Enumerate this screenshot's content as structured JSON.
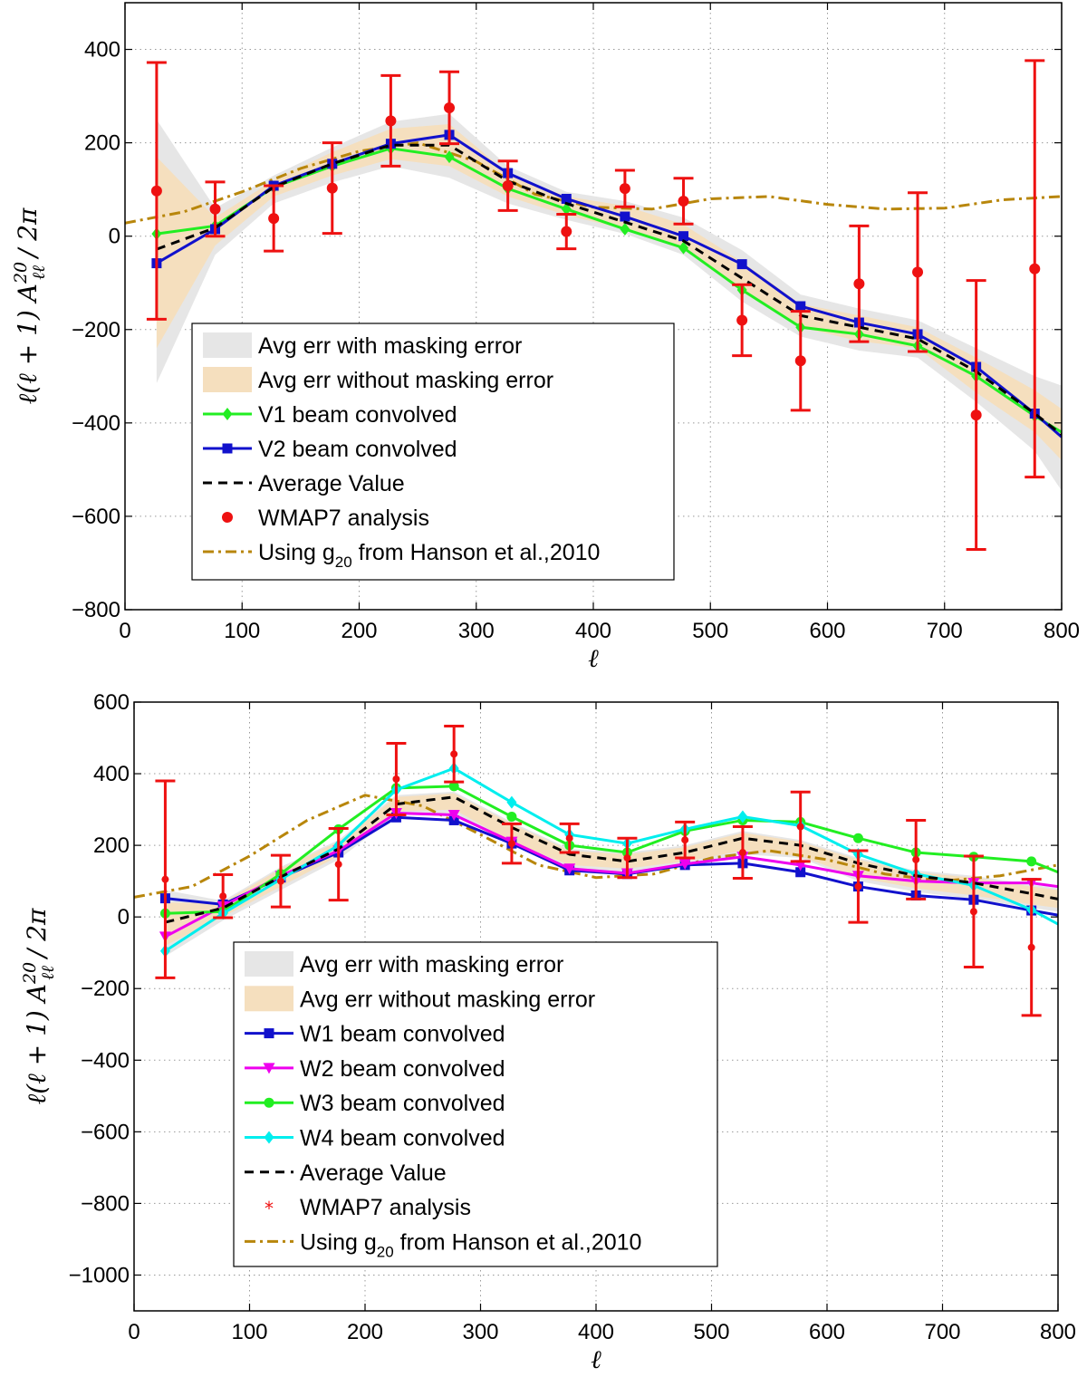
{
  "chart_data": [
    {
      "type": "line",
      "xlabel": "ℓ",
      "ylabel": "ℓ(ℓ + 1) A^{20}_{ℓℓ} / 2π",
      "xlim": [
        0,
        800
      ],
      "ylim": [
        -800,
        500
      ],
      "xticks": [
        "0",
        "100",
        "200",
        "300",
        "400",
        "500",
        "600",
        "700",
        "800"
      ],
      "yticks": [
        "−800",
        "−600",
        "−400",
        "−200",
        "0",
        "200",
        "400"
      ],
      "grid": true,
      "legend_position": "lower-left",
      "x": [
        27,
        77,
        127,
        177,
        227,
        277,
        327,
        377,
        427,
        477,
        527,
        577,
        627,
        677,
        727,
        777,
        800
      ],
      "bands": [
        {
          "name": "Avg err with masking error",
          "color": "#e6e6e6",
          "upper": [
            250,
            60,
            130,
            190,
            245,
            262,
            150,
            95,
            75,
            40,
            -30,
            -125,
            -155,
            -180,
            -240,
            -300,
            -320
          ],
          "lower": [
            -315,
            -40,
            70,
            115,
            150,
            125,
            70,
            35,
            5,
            -40,
            -140,
            -215,
            -245,
            -260,
            -355,
            -460,
            -545
          ]
        },
        {
          "name": "Avg err without masking error",
          "color": "#f5dfbe",
          "upper": [
            170,
            40,
            120,
            180,
            230,
            240,
            135,
            85,
            65,
            25,
            -55,
            -145,
            -170,
            -195,
            -260,
            -330,
            -370
          ],
          "lower": [
            -240,
            -20,
            85,
            130,
            165,
            150,
            85,
            45,
            15,
            -25,
            -120,
            -195,
            -225,
            -240,
            -335,
            -420,
            -480
          ]
        }
      ],
      "series": [
        {
          "name": "V1 beam convolved",
          "color": "#22ee22",
          "marker": "diamond",
          "values": [
            5,
            22,
            105,
            150,
            188,
            170,
            102,
            58,
            15,
            -25,
            -115,
            -195,
            -210,
            -235,
            -300,
            -385,
            -420
          ]
        },
        {
          "name": "V2 beam convolved",
          "color": "#1111cc",
          "marker": "square",
          "values": [
            -58,
            15,
            108,
            155,
            198,
            217,
            135,
            80,
            42,
            0,
            -60,
            -150,
            -185,
            -210,
            -280,
            -380,
            -430
          ]
        },
        {
          "name": "Average Value",
          "color": "#000000",
          "marker": "none",
          "dash": "dashed",
          "values": [
            -28,
            18,
            105,
            155,
            195,
            195,
            118,
            70,
            30,
            -10,
            -90,
            -170,
            -195,
            -220,
            -290,
            -380,
            -425
          ]
        }
      ],
      "wmap7": {
        "name": "WMAP7 analysis",
        "color": "#ee1111",
        "marker": "dot",
        "x": [
          27,
          77,
          127,
          177,
          227,
          277,
          327,
          377,
          427,
          477,
          527,
          577,
          627,
          677,
          727,
          777
        ],
        "values": [
          97,
          58,
          38,
          103,
          247,
          275,
          108,
          10,
          102,
          75,
          -180,
          -267,
          -102,
          -77,
          -383,
          -70
        ],
        "err": [
          275,
          58,
          70,
          97,
          97,
          77,
          53,
          37,
          39,
          49,
          76,
          106,
          124,
          170,
          288,
          446
        ]
      },
      "hanson": {
        "name": "Using g20 from Hanson et al.,2010",
        "color": "#b8860b",
        "dash": "dashdot",
        "x": [
          0,
          50,
          100,
          150,
          200,
          250,
          300,
          350,
          400,
          450,
          500,
          550,
          600,
          650,
          700,
          750,
          800
        ],
        "values": [
          28,
          52,
          95,
          145,
          182,
          200,
          160,
          90,
          62,
          58,
          80,
          85,
          68,
          58,
          60,
          78,
          85
        ]
      }
    },
    {
      "type": "line",
      "xlabel": "ℓ",
      "ylabel": "ℓ(ℓ + 1) A^{20}_{ℓℓ} / 2π",
      "xlim": [
        0,
        800
      ],
      "ylim": [
        -1100,
        600
      ],
      "xticks": [
        "0",
        "100",
        "200",
        "300",
        "400",
        "500",
        "600",
        "700",
        "800"
      ],
      "yticks": [
        "−1000",
        "−800",
        "−600",
        "−400",
        "−200",
        "0",
        "200",
        "400",
        "600"
      ],
      "grid": true,
      "legend_position": "lower-left",
      "x": [
        27,
        77,
        127,
        177,
        227,
        277,
        327,
        377,
        427,
        477,
        527,
        577,
        627,
        677,
        727,
        777,
        800
      ],
      "bands": [
        {
          "name": "Avg err with masking error",
          "color": "#e6e6e6",
          "upper": [
            75,
            45,
            140,
            215,
            340,
            350,
            265,
            190,
            180,
            200,
            240,
            215,
            165,
            130,
            115,
            90,
            80
          ],
          "lower": [
            -110,
            -10,
            75,
            160,
            285,
            290,
            200,
            135,
            125,
            145,
            175,
            165,
            100,
            70,
            50,
            25,
            15
          ]
        },
        {
          "name": "Avg err without masking error",
          "color": "#f5dfbe",
          "upper": [
            40,
            40,
            135,
            210,
            335,
            345,
            260,
            185,
            175,
            195,
            235,
            210,
            160,
            125,
            110,
            85,
            75
          ],
          "lower": [
            -80,
            0,
            85,
            170,
            295,
            300,
            210,
            145,
            135,
            155,
            185,
            170,
            110,
            80,
            60,
            35,
            25
          ]
        }
      ],
      "series": [
        {
          "name": "W1 beam convolved",
          "color": "#1111cc",
          "marker": "square",
          "values": [
            52,
            35,
            110,
            180,
            278,
            270,
            205,
            130,
            120,
            145,
            150,
            125,
            85,
            60,
            48,
            18,
            5
          ]
        },
        {
          "name": "W2 beam convolved",
          "color": "#ee00ee",
          "marker": "triangle-down",
          "values": [
            -55,
            30,
            115,
            185,
            290,
            285,
            210,
            135,
            122,
            148,
            168,
            145,
            115,
            100,
            95,
            95,
            85
          ]
        },
        {
          "name": "W3 beam convolved",
          "color": "#22ee22",
          "marker": "circle",
          "values": [
            10,
            15,
            120,
            245,
            360,
            365,
            280,
            200,
            180,
            240,
            270,
            265,
            220,
            180,
            168,
            155,
            125
          ]
        },
        {
          "name": "W4 beam convolved",
          "color": "#00eeee",
          "marker": "diamond",
          "values": [
            -95,
            10,
            105,
            200,
            355,
            415,
            320,
            230,
            205,
            245,
            280,
            255,
            175,
            120,
            88,
            20,
            -20
          ]
        },
        {
          "name": "Average Value",
          "color": "#000000",
          "marker": "none",
          "dash": "dashed",
          "values": [
            -15,
            25,
            112,
            190,
            315,
            335,
            250,
            175,
            155,
            180,
            220,
            200,
            150,
            115,
            95,
            65,
            50
          ]
        }
      ],
      "wmap7": {
        "name": "WMAP7 analysis",
        "color": "#ee1111",
        "marker": "star",
        "x": [
          27,
          77,
          127,
          177,
          227,
          277,
          327,
          377,
          427,
          477,
          527,
          577,
          627,
          677,
          727,
          777
        ],
        "values": [
          105,
          58,
          100,
          147,
          385,
          455,
          205,
          220,
          165,
          215,
          180,
          252,
          85,
          160,
          15,
          -85
        ],
        "err": [
          275,
          60,
          72,
          100,
          100,
          78,
          55,
          40,
          55,
          50,
          72,
          97,
          100,
          110,
          155,
          190
        ]
      },
      "hanson": {
        "name": "Using g20 from Hanson et al.,2010",
        "color": "#b8860b",
        "dash": "dashdot",
        "x": [
          0,
          50,
          100,
          150,
          200,
          250,
          300,
          350,
          400,
          450,
          500,
          550,
          600,
          650,
          700,
          750,
          800
        ],
        "values": [
          55,
          85,
          170,
          270,
          340,
          310,
          230,
          145,
          110,
          120,
          165,
          185,
          160,
          120,
          100,
          115,
          145
        ]
      }
    }
  ],
  "legends": [
    {
      "items": [
        {
          "label": "Avg err with masking error",
          "kind": "band",
          "color": "#e6e6e6"
        },
        {
          "label": "Avg err without masking error",
          "kind": "band",
          "color": "#f5dfbe"
        },
        {
          "label": "V1 beam convolved",
          "kind": "line",
          "color": "#22ee22",
          "marker": "diamond"
        },
        {
          "label": "V2 beam convolved",
          "kind": "line",
          "color": "#1111cc",
          "marker": "square"
        },
        {
          "label": "Average Value",
          "kind": "dashed",
          "color": "#000000"
        },
        {
          "label": "WMAP7 analysis",
          "kind": "dot",
          "color": "#ee1111"
        },
        {
          "label": "Using g",
          "sub": "20",
          "rest": " from Hanson et al.,2010",
          "kind": "dashdot",
          "color": "#b8860b"
        }
      ]
    },
    {
      "items": [
        {
          "label": "Avg err with masking error",
          "kind": "band",
          "color": "#e6e6e6"
        },
        {
          "label": "Avg err without masking error",
          "kind": "band",
          "color": "#f5dfbe"
        },
        {
          "label": "W1 beam convolved",
          "kind": "line",
          "color": "#1111cc",
          "marker": "square"
        },
        {
          "label": "W2 beam convolved",
          "kind": "line",
          "color": "#ee00ee",
          "marker": "triangle-down"
        },
        {
          "label": "W3 beam convolved",
          "kind": "line",
          "color": "#22ee22",
          "marker": "circle"
        },
        {
          "label": "W4 beam convolved",
          "kind": "line",
          "color": "#00eeee",
          "marker": "diamond"
        },
        {
          "label": "Average Value",
          "kind": "dashed",
          "color": "#000000"
        },
        {
          "label": "WMAP7 analysis",
          "kind": "star",
          "color": "#ee1111"
        },
        {
          "label": "Using g",
          "sub": "20",
          "rest": " from Hanson et al.,2010",
          "kind": "dashdot",
          "color": "#b8860b"
        }
      ]
    }
  ]
}
